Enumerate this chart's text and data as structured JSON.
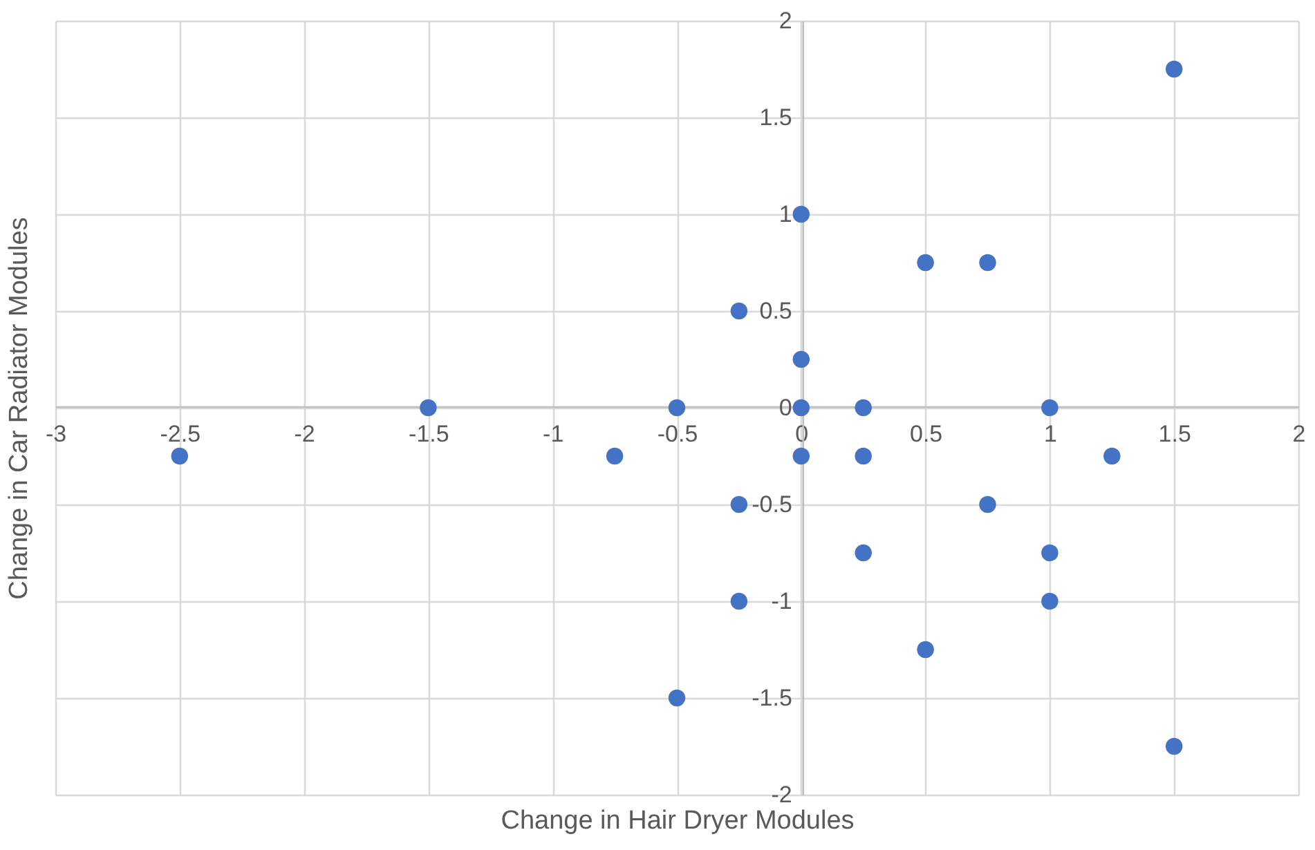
{
  "chart_data": {
    "type": "scatter",
    "xlabel": "Change in Hair Dryer Modules",
    "ylabel": "Change in Car Radiator Modules",
    "x": [
      1.5,
      0,
      0.5,
      0.75,
      -0.25,
      0,
      -1.5,
      -0.5,
      0,
      0.25,
      1,
      -2.5,
      -0.75,
      0,
      0.25,
      1.25,
      -0.25,
      0.75,
      0.25,
      1,
      -0.25,
      1,
      0.5,
      -0.5,
      1.5
    ],
    "series": [
      {
        "color": "#4472c4",
        "values": [
          1.75,
          1,
          0.75,
          0.75,
          0.5,
          0.25,
          0,
          0,
          0,
          0,
          0,
          -0.25,
          -0.25,
          -0.25,
          -0.25,
          -0.25,
          -0.5,
          -0.5,
          -0.75,
          -0.75,
          -1,
          -1,
          -1.25,
          -1.5,
          -1.75
        ]
      }
    ],
    "xlim": [
      -3,
      2
    ],
    "xticks": [
      -3,
      -2.5,
      -2,
      -1.5,
      -1,
      -0.5,
      0,
      0.5,
      1,
      1.5,
      2
    ],
    "ylim": [
      -2,
      2
    ],
    "yticks": [
      -2,
      -1.5,
      -1,
      -0.5,
      0,
      0.5,
      1,
      1.5,
      2
    ],
    "grid": true,
    "marker": "circle"
  }
}
